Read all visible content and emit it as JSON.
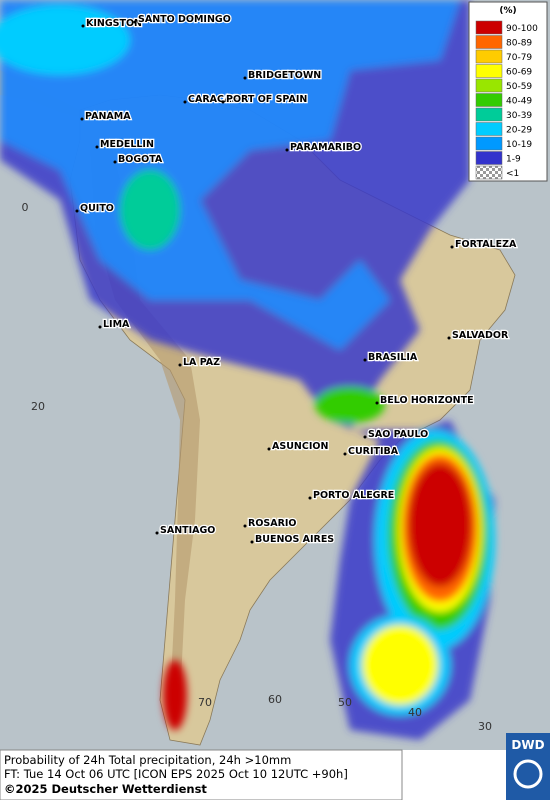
{
  "cities": [
    "KINGSTON",
    "SANTO DOMINGO",
    "BRIDGETOWN",
    "CARACAS",
    "PORT OF SPAIN",
    "PANAMA",
    "MEDELLIN",
    "BOGOTA",
    "PARAMARIBO",
    "QUITO",
    "FORTALEZA",
    "LIMA",
    "SALVADOR",
    "LA PAZ",
    "BRASILIA",
    "BELO HORIZONTE",
    "SAO PAULO",
    "ASUNCION",
    "CURITIBA",
    "PORTO ALEGRE",
    "ROSARIO",
    "SANTIAGO",
    "BUENOS AIRES"
  ],
  "graticule": [
    "0",
    "20",
    "70",
    "60",
    "50",
    "40",
    "30"
  ],
  "legend": {
    "unit": "(%)",
    "entries": [
      {
        "label": "90-100",
        "color": "#cc0000"
      },
      {
        "label": "80-89",
        "color": "#ff6600"
      },
      {
        "label": "70-79",
        "color": "#ffcc00"
      },
      {
        "label": "60-69",
        "color": "#ffff00"
      },
      {
        "label": "50-59",
        "color": "#99e600"
      },
      {
        "label": "40-49",
        "color": "#33cc00"
      },
      {
        "label": "30-39",
        "color": "#00cc99"
      },
      {
        "label": "20-29",
        "color": "#00ccff"
      },
      {
        "label": "10-19",
        "color": "#0099ff"
      },
      {
        "label": "1-9",
        "color": "#3333cc"
      },
      {
        "label": "<1",
        "color": "checkered"
      }
    ]
  },
  "footer": {
    "line1": "Probability of 24h Total precipitation, 24h >10mm",
    "line2": "FT: Tue 14 Oct 06 UTC [ICON EPS 2025 Oct 10 12UTC +90h]",
    "copyright": "©2025 Deutscher Wetterdienst"
  },
  "logo": "DWD"
}
